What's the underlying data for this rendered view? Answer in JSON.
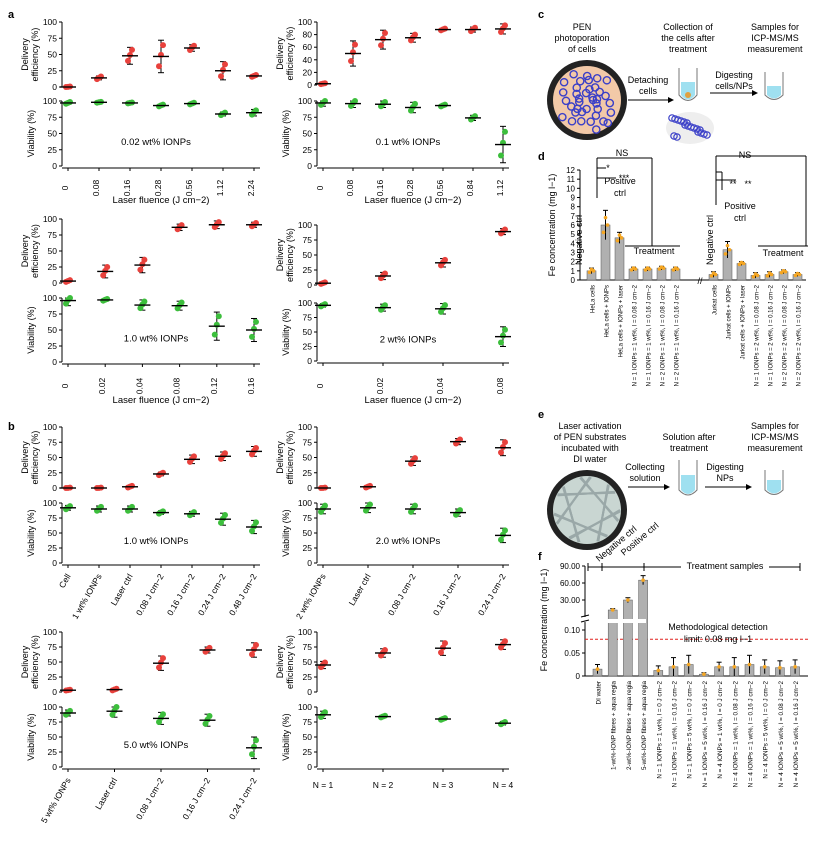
{
  "figure": {
    "panel_labels": [
      "a",
      "b",
      "c",
      "d",
      "e",
      "f"
    ],
    "colors": {
      "delivery": "#e8413c",
      "viability": "#3cbe3c",
      "bar": "#b0b0b0",
      "bar_dot": "#f5a623",
      "dashed": "#e0201e",
      "cell_blue": "#3a3fc8",
      "cell_fill": "#f2c9a8",
      "fibre": "#9aa8a8",
      "tube": "#9fe0f0"
    },
    "axis_labels": {
      "delivery": "Delivery efficiency (%)",
      "viability": "Viability (%)",
      "fluence": "Laser fluence (J cm−2)"
    }
  },
  "chart_data": [
    {
      "id": "a1",
      "type": "scatter",
      "title": "0.02 wt% IONPs",
      "xlabel": "Laser fluence (J cm−2)",
      "categories": [
        "0",
        "0.08",
        "0.16",
        "0.28",
        "0.56",
        "1.12",
        "2.24"
      ],
      "delivery": {
        "ylim": [
          0,
          100
        ],
        "ticks": [
          "0",
          "25",
          "50",
          "75",
          "100"
        ],
        "mean": [
          0,
          14,
          48,
          47,
          60,
          25,
          17
        ],
        "err": [
          1,
          3,
          13,
          25,
          5,
          14,
          2
        ]
      },
      "viability": {
        "ylim": [
          0,
          100
        ],
        "ticks": [
          "0",
          "25",
          "50",
          "75",
          "100"
        ],
        "mean": [
          97,
          98,
          97,
          93,
          96,
          80,
          82
        ],
        "err": [
          2,
          1,
          1,
          2,
          2,
          3,
          5
        ]
      }
    },
    {
      "id": "a2",
      "type": "scatter",
      "title": "0.1 wt% IONPs",
      "xlabel": "Laser fluence (J cm−2)",
      "categories": [
        "0",
        "0.08",
        "0.16",
        "0.28",
        "0.56",
        "0.84",
        "1.12"
      ],
      "delivery": {
        "ylim": [
          0,
          100
        ],
        "ticks": [
          "0",
          "20",
          "40",
          "60",
          "80",
          "100"
        ],
        "mean": [
          2,
          50,
          72,
          75,
          88,
          88,
          89
        ],
        "err": [
          1,
          20,
          15,
          7,
          2,
          4,
          8
        ]
      },
      "viability": {
        "ylim": [
          0,
          100
        ],
        "ticks": [
          "0",
          "25",
          "50",
          "75",
          "100"
        ],
        "mean": [
          97,
          96,
          95,
          90,
          93,
          74,
          33
        ],
        "err": [
          5,
          6,
          5,
          8,
          2,
          4,
          28
        ]
      }
    },
    {
      "id": "a3",
      "type": "scatter",
      "title": "1.0 wt% IONPs",
      "xlabel": "Laser fluence (J cm−2)",
      "categories": [
        "0",
        "0.02",
        "0.04",
        "0.08",
        "0.12",
        "0.16"
      ],
      "delivery": {
        "ylim": [
          0,
          100
        ],
        "ticks": [
          "0",
          "25",
          "50",
          "75",
          "100"
        ],
        "mean": [
          3,
          18,
          28,
          87,
          91,
          91
        ],
        "err": [
          2,
          10,
          12,
          5,
          6,
          4
        ]
      },
      "viability": {
        "ylim": [
          0,
          100
        ],
        "ticks": [
          "0",
          "25",
          "50",
          "75",
          "100"
        ],
        "mean": [
          96,
          97,
          89,
          88,
          56,
          50
        ],
        "err": [
          8,
          2,
          8,
          7,
          22,
          18
        ]
      }
    },
    {
      "id": "a4",
      "type": "scatter",
      "title": "2 wt% IONPs",
      "xlabel": "Laser fluence (J cm−2)",
      "categories": [
        "0",
        "0.02",
        "0.04",
        "0.08"
      ],
      "delivery": {
        "ylim": [
          0,
          100
        ],
        "ticks": [
          "0",
          "25",
          "50",
          "75",
          "100"
        ],
        "mean": [
          3,
          15,
          37,
          89
        ],
        "err": [
          2,
          6,
          7,
          5
        ]
      },
      "viability": {
        "ylim": [
          0,
          100
        ],
        "ticks": [
          "0",
          "25",
          "50",
          "75",
          "100"
        ],
        "mean": [
          96,
          92,
          90,
          42
        ],
        "err": [
          3,
          6,
          9,
          17
        ]
      }
    },
    {
      "id": "b1",
      "type": "scatter",
      "title": "1.0 wt% IONPs",
      "xlabel": "",
      "categories": [
        "Cell",
        "1 wt% IONPs",
        "Laser ctrl",
        "0.08 J cm−2",
        "0.16 J cm−2",
        "0.24 J cm−2",
        "0.48 J cm−2"
      ],
      "delivery": {
        "ylim": [
          0,
          100
        ],
        "ticks": [
          "0",
          "25",
          "50",
          "75",
          "100"
        ],
        "mean": [
          0,
          0,
          2,
          23,
          47,
          52,
          60
        ],
        "err": [
          1,
          1,
          2,
          3,
          7,
          7,
          8
        ]
      },
      "viability": {
        "ylim": [
          0,
          100
        ],
        "ticks": [
          "0",
          "25",
          "50",
          "75",
          "100"
        ],
        "mean": [
          92,
          90,
          90,
          84,
          82,
          73,
          60
        ],
        "err": [
          4,
          5,
          5,
          3,
          4,
          10,
          11
        ]
      }
    },
    {
      "id": "b2",
      "type": "scatter",
      "title": "2.0 wt% IONPs",
      "xlabel": "",
      "categories": [
        "2 wt% IONPs",
        "Laser ctrl",
        "0.08 J cm−2",
        "0.16 J cm−2",
        "0.24 J cm−2"
      ],
      "delivery": {
        "ylim": [
          0,
          100
        ],
        "ticks": [
          "0",
          "25",
          "50",
          "75",
          "100"
        ],
        "mean": [
          0,
          2,
          44,
          76,
          66
        ],
        "err": [
          1,
          2,
          7,
          5,
          13
        ]
      },
      "viability": {
        "ylim": [
          0,
          100
        ],
        "ticks": [
          "0",
          "25",
          "50",
          "75",
          "100"
        ],
        "mean": [
          90,
          92,
          90,
          84,
          46
        ],
        "err": [
          8,
          8,
          8,
          6,
          12
        ]
      }
    },
    {
      "id": "b3",
      "type": "scatter",
      "title": "5.0 wt% IONPs",
      "xlabel": "",
      "categories": [
        "5 wt% IONPs",
        "Laser ctrl",
        "0.08 J cm−2",
        "0.16 J cm−2",
        "0.24 J cm−2"
      ],
      "delivery": {
        "ylim": [
          0,
          100
        ],
        "ticks": [
          "0",
          "25",
          "50",
          "75",
          "100"
        ],
        "mean": [
          3,
          4,
          48,
          70,
          70
        ],
        "err": [
          1,
          2,
          12,
          5,
          12
        ]
      },
      "viability": {
        "ylim": [
          0,
          100
        ],
        "ticks": [
          "0",
          "25",
          "50",
          "75",
          "100"
        ],
        "mean": [
          90,
          93,
          81,
          78,
          32
        ],
        "err": [
          5,
          10,
          10,
          10,
          18
        ]
      }
    },
    {
      "id": "b4",
      "type": "scatter",
      "title": "",
      "xlabel": "",
      "categories": [
        "N = 1",
        "N = 2",
        "N = 3",
        "N = 4"
      ],
      "delivery": {
        "ylim": [
          0,
          100
        ],
        "ticks": [
          "0",
          "25",
          "50",
          "75",
          "100"
        ],
        "mean": [
          45,
          65,
          73,
          79
        ],
        "err": [
          6,
          7,
          12,
          8
        ]
      },
      "viability": {
        "ylim": [
          0,
          100
        ],
        "ticks": [
          "0",
          "25",
          "50",
          "75",
          "100"
        ],
        "mean": [
          87,
          84,
          80,
          73
        ],
        "err": [
          6,
          2,
          2,
          3
        ]
      }
    },
    {
      "id": "d",
      "type": "bar",
      "ylabel": "Fe concentration (mg l−1)",
      "ylim": [
        0,
        12
      ],
      "ticks": [
        "0",
        "1",
        "2",
        "3",
        "4",
        "5",
        "6",
        "7",
        "8",
        "9",
        "10",
        "11",
        "12"
      ],
      "groups": [
        {
          "categories": [
            "HeLa cells",
            "HeLa cells + IONPs",
            "HeLa cells + IONPs + laser",
            "N = 1 IONPs = 1 wt%, l = 0.08 J cm−2",
            "N = 1 IONPs = 1 wt%, l = 0.16 J cm−2",
            "N = 2 IONPs = 1 wt%, l = 0.08 J cm−2",
            "N = 2 IONPs = 1 wt%, l = 0.16 J cm−2"
          ],
          "values": [
            1.0,
            6.0,
            4.6,
            1.2,
            1.2,
            1.3,
            1.2
          ],
          "err": [
            0.3,
            1.6,
            0.6,
            0.2,
            0.2,
            0.2,
            0.2
          ]
        },
        {
          "categories": [
            "Jurkat cells",
            "Jurkat cells + IONPs",
            "Jurkat cells + IONPs + laser",
            "N = 1 IONPs = 2 wt%, l = 0.08 J cm−2",
            "N = 1 IONPs = 2 wt%, l = 0.16 J cm−2",
            "N = 2 IONPs = 2 wt%, l = 0.08 J cm−2",
            "N = 2 IONPs = 2 wt%, l = 0.16 J cm−2"
          ],
          "values": [
            0.6,
            3.3,
            1.8,
            0.5,
            0.6,
            0.9,
            0.6
          ],
          "err": [
            0.3,
            0.9,
            0.2,
            0.3,
            0.3,
            0.2,
            0.2
          ]
        }
      ],
      "annotations": {
        "ns": "NS",
        "star1": "*",
        "star3": "***",
        "star2": "**",
        "positive": "Positive ctrl",
        "negative": "Negative ctrl",
        "treatment": "Treatment"
      }
    },
    {
      "id": "f",
      "type": "bar",
      "ylabel": "Fe concentration (mg l−1)",
      "ylim": [
        0,
        90
      ],
      "ticks": [
        "0",
        "0.05",
        "0.10",
        "30.00",
        "60.00",
        "90.00"
      ],
      "ticks_broken_axis": true,
      "categories": [
        "DI water",
        "1-wt%-IONP fibres + aqua regia",
        "2-wt%-IONP fibres + aqua regia",
        "5-wt%-IONP fibres + aqua regia",
        "N = 1 IONPs = 1 wt%, l = 0 J cm−2",
        "N = 1 IONPs = 1 wt%, l = 0.16 J cm−2",
        "N = 1 IONPs = 5 wt%, l = 0 J cm−2",
        "N = 1 IONPs = 5 wt%, l = 0.16 J cm−2",
        "N = 4 IONPs = 1 wt%, l = 0 J cm−2",
        "N = 4 IONPs = 1 wt%, l = 0.08 J cm−2",
        "N = 4 IONPs = 1 wt%, l = 0.16 J cm−2",
        "N = 4 IONPs = 5 wt%, l = 0 J cm−2",
        "N = 4 IONPs = 5 wt%, l = 0.08 J cm−2",
        "N = 4 IONPs = 5 wt%, l = 0.16 J cm−2"
      ],
      "values": [
        0.015,
        15,
        30,
        65,
        0.012,
        0.02,
        0.025,
        0.004,
        0.02,
        0.02,
        0.025,
        0.02,
        0.018,
        0.02
      ],
      "err": [
        0.01,
        2,
        4,
        8,
        0.01,
        0.02,
        0.02,
        0.003,
        0.01,
        0.02,
        0.02,
        0.015,
        0.015,
        0.015
      ],
      "detection_limit": 0.08,
      "detection_label": "Methodological detection limit: 0.08 mg l−1",
      "brackets": {
        "negative": "Negative ctrl",
        "positive": "Positive ctrl",
        "treatment": "Treatment samples"
      }
    }
  ],
  "schematic_c": {
    "title": "PEN photoporation of cells",
    "step1": "Detaching cells",
    "mid": "Collection of the cells after treatment",
    "step2": "Digesting cells/NPs",
    "end": "Samples for ICP-MS/MS measurement"
  },
  "schematic_e": {
    "title": "Laser activation of PEN substrates incubated with DI water",
    "step1": "Collecting solution",
    "mid": "Solution after treatment",
    "step2": "Digesting NPs",
    "end": "Samples for ICP-MS/MS measurement"
  }
}
